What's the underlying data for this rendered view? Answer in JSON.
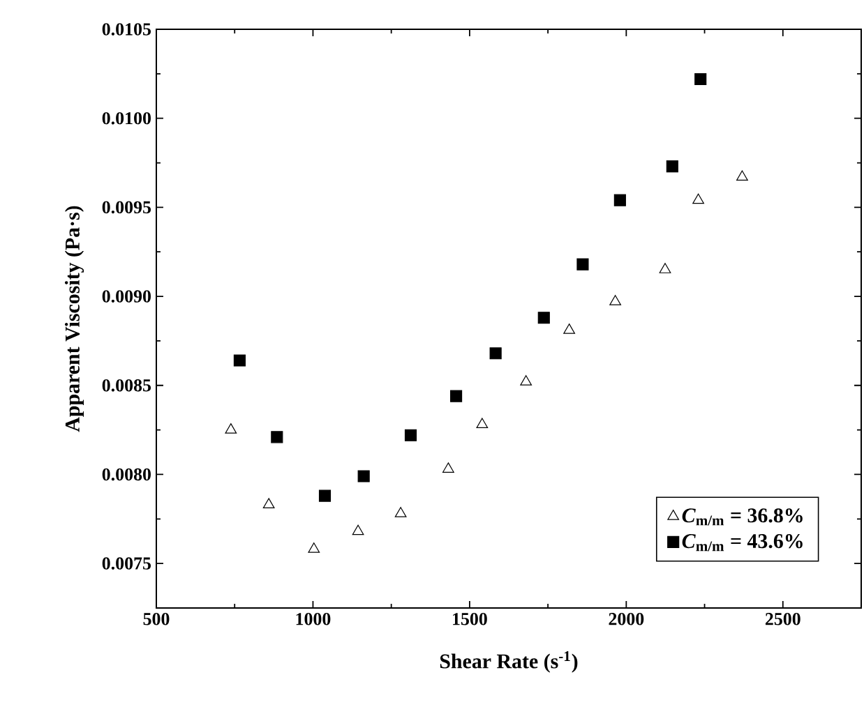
{
  "chart_data": {
    "type": "scatter",
    "xlabel": "Shear Rate (s$^{-1}$)",
    "ylabel": "Apparent Viscosity (Pa·s)",
    "xlim": [
      500,
      2750
    ],
    "xticks": [
      500,
      1000,
      1500,
      2000,
      2500
    ],
    "ylim": [
      0.00725,
      0.0105
    ],
    "yticks": [
      0.0075,
      {
        "value": 0.008,
        "label": "0.0080"
      },
      0.0085,
      {
        "value": 0.009,
        "label": "0.0090"
      },
      0.0095,
      {
        "value": 0.01,
        "label": "0.0100"
      },
      0.0105
    ],
    "legend": "bottom right",
    "grid": false,
    "series": [
      {
        "name": "*C*$_{m/m}$ = 36.8%",
        "color": "#000000",
        "marker": "triangle",
        "x": [
          738,
          859,
          1003,
          1144,
          1280,
          1432,
          1540,
          1680,
          1818,
          1965,
          2124,
          2230,
          2370
        ],
        "values": [
          0.00825,
          0.00783,
          0.00758,
          0.00768,
          0.00778,
          0.00803,
          0.00828,
          0.00852,
          0.00881,
          0.00897,
          0.00915,
          0.00954,
          0.00967
        ]
      },
      {
        "name": "*C*$_{m/m}$ = 43.6%",
        "color": "#000000",
        "marker": "square",
        "x": [
          766,
          885,
          1038,
          1162,
          1312,
          1457,
          1583,
          1737,
          1861,
          1980,
          2147,
          2237
        ],
        "values": [
          0.00864,
          0.00821,
          0.00788,
          0.00799,
          0.00822,
          0.00844,
          0.00868,
          0.00888,
          0.00918,
          0.00954,
          0.00973,
          0.01022
        ]
      }
    ]
  }
}
